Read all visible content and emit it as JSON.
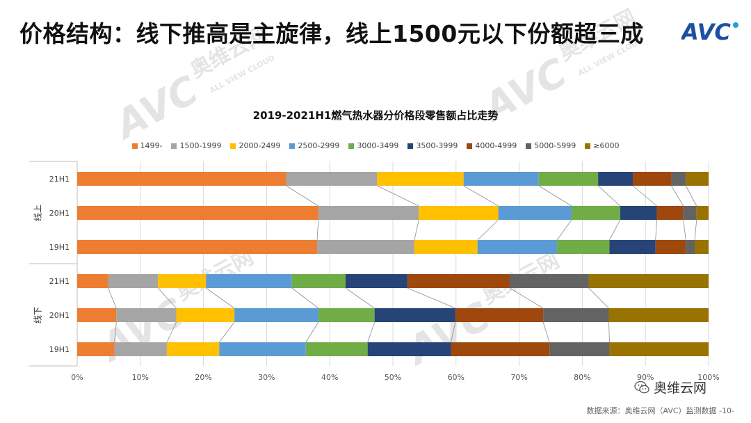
{
  "page": {
    "title": "价格结构：线下推高是主旋律，线上1500元以下份额超三成",
    "logo_text": "AVC",
    "watermark_cn": "奥维云网",
    "watermark_en": "ALL VIEW CLOUD",
    "footer": "数据来源：奥维云网（AVC）监测数据 -10-",
    "wechat_label": "奥维云网",
    "colors": {
      "title": "#111111",
      "logo": "#1d4fa3",
      "logo_accent": "#1da1d8"
    }
  },
  "chart_data": {
    "type": "bar",
    "orientation": "horizontal",
    "stacked": "percent",
    "title": "2019-2021H1燃气热水器分价格段零售额占比走势",
    "groups": [
      {
        "name": "线上",
        "categories": [
          "21H1",
          "20H1",
          "19H1"
        ]
      },
      {
        "name": "线下",
        "categories": [
          "21H1",
          "20H1",
          "19H1"
        ]
      }
    ],
    "categories": [
      "线上 21H1",
      "线上 20H1",
      "线上 19H1",
      "线下 21H1",
      "线下 20H1",
      "线下 19H1"
    ],
    "category_labels": [
      "21H1",
      "20H1",
      "19H1",
      "21H1",
      "20H1",
      "19H1"
    ],
    "series": [
      {
        "name": "1499-",
        "color": "#ED7D31",
        "values": [
          33.1,
          38.2,
          38.0,
          4.9,
          6.2,
          5.9
        ]
      },
      {
        "name": "1500-1999",
        "color": "#A5A5A5",
        "values": [
          14.4,
          15.9,
          15.4,
          7.9,
          9.5,
          8.3
        ]
      },
      {
        "name": "2000-2499",
        "color": "#FFC000",
        "values": [
          13.7,
          12.6,
          10.0,
          7.6,
          9.2,
          8.3
        ]
      },
      {
        "name": "2500-2999",
        "color": "#5B9BD5",
        "values": [
          11.9,
          11.6,
          12.6,
          13.6,
          13.3,
          13.7
        ]
      },
      {
        "name": "3000-3499",
        "color": "#70AD47",
        "values": [
          9.4,
          7.7,
          8.3,
          8.5,
          8.9,
          9.8
        ]
      },
      {
        "name": "3500-3999",
        "color": "#264478",
        "values": [
          5.5,
          5.8,
          7.3,
          9.8,
          12.8,
          13.2
        ]
      },
      {
        "name": "4000-4999",
        "color": "#9E480E",
        "values": [
          6.1,
          4.2,
          4.8,
          16.2,
          13.9,
          15.6
        ]
      },
      {
        "name": "5000-5999",
        "color": "#636363",
        "values": [
          2.3,
          2.1,
          1.4,
          12.5,
          10.4,
          9.5
        ]
      },
      {
        "name": "≥6000",
        "color": "#997300",
        "values": [
          3.6,
          1.9,
          2.2,
          19.0,
          15.8,
          15.7
        ]
      }
    ],
    "xaxis": {
      "ticks": [
        "0%",
        "10%",
        "20%",
        "30%",
        "40%",
        "50%",
        "60%",
        "70%",
        "80%",
        "90%",
        "100%"
      ],
      "range": [
        0,
        100
      ],
      "grid": true
    },
    "legend_position": "top",
    "series_connector_lines": true
  }
}
